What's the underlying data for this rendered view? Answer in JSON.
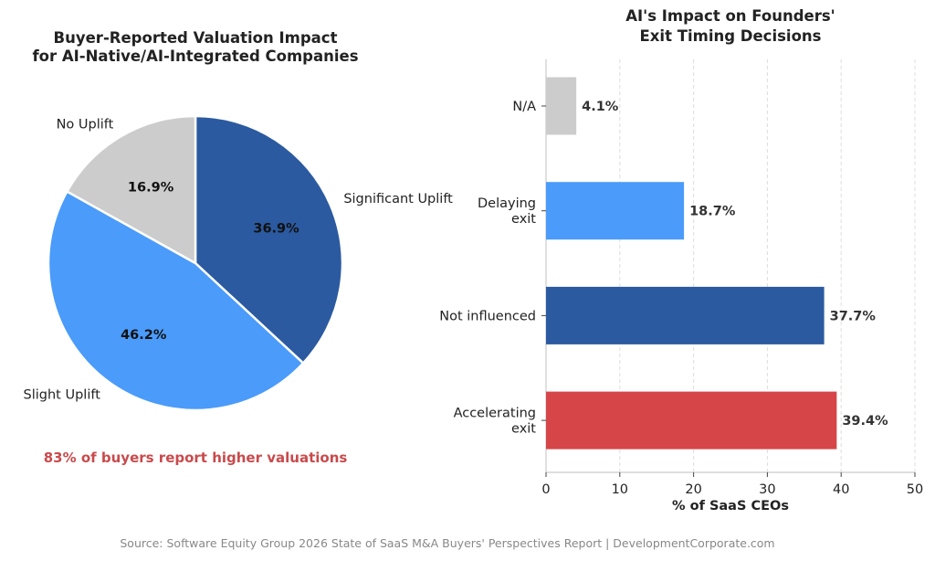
{
  "chart_data": [
    {
      "type": "pie",
      "title": [
        "Buyer-Reported Valuation Impact",
        "for AI-Native/AI-Integrated Companies"
      ],
      "slices": [
        {
          "label": "Significant Uplift",
          "value": 36.9,
          "display": "36.9%",
          "color": "#2B5AA0"
        },
        {
          "label": "Slight Uplift",
          "value": 46.2,
          "display": "46.2%",
          "color": "#4A9BFA"
        },
        {
          "label": "No Uplift",
          "value": 16.9,
          "display": "16.9%",
          "color": "#CCCCCC"
        }
      ],
      "start_angle_deg": 90,
      "direction": "clockwise",
      "annotation": "83% of buyers report higher valuations",
      "annotation_color": "#C94A4C"
    },
    {
      "type": "bar",
      "orientation": "horizontal",
      "title": [
        "AI's Impact on Founders'",
        "Exit Timing Decisions"
      ],
      "categories": [
        [
          "N/A"
        ],
        [
          "Delaying",
          "exit"
        ],
        [
          "Not influenced"
        ],
        [
          "Accelerating",
          "exit"
        ]
      ],
      "values": [
        4.1,
        18.7,
        37.7,
        39.4
      ],
      "value_labels": [
        "4.1%",
        "18.7%",
        "37.7%",
        "39.4%"
      ],
      "colors": [
        "#CCCCCC",
        "#4A9BFA",
        "#2B5AA0",
        "#D64548"
      ],
      "xlabel": "% of SaaS CEOs",
      "ylabel": "",
      "xlim": [
        0,
        50
      ],
      "xticks": [
        0,
        10,
        20,
        30,
        40,
        50
      ],
      "grid": "vertical dashed"
    }
  ],
  "footer": {
    "source": "Source: Software Equity Group 2026 State of SaaS M&A Buyers' Perspectives Report | DevelopmentCorporate.com"
  }
}
